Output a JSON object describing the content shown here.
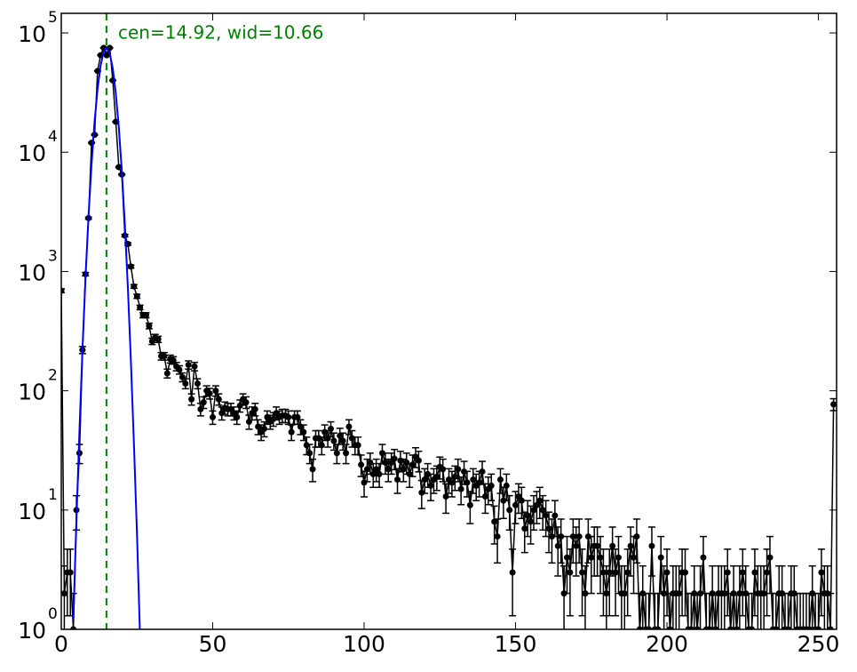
{
  "chart_data": {
    "type": "errorbar",
    "log_y": true,
    "annotation": "cen=14.92, wid=10.66",
    "annotation_color": "#008000",
    "vline": 14.92,
    "vline_color": "#008000",
    "color": "#000000",
    "xlim": [
      0,
      256
    ],
    "ylim": [
      1,
      146000
    ],
    "xticks": [
      0,
      50,
      100,
      150,
      200,
      250
    ],
    "yticks": [
      {
        "value": 1,
        "label": "10",
        "exponent": "0"
      },
      {
        "value": 10,
        "label": "10",
        "exponent": "1"
      },
      {
        "value": 100,
        "label": "10",
        "exponent": "2"
      },
      {
        "value": 1000,
        "label": "10",
        "exponent": "3"
      },
      {
        "value": 10000,
        "label": "10",
        "exponent": "4"
      },
      {
        "value": 100000,
        "label": "10",
        "exponent": "5"
      }
    ],
    "x": [
      0,
      1,
      2,
      3,
      4,
      5,
      6,
      7,
      8,
      9,
      10,
      11,
      12,
      13,
      14,
      15,
      16,
      17,
      18,
      19,
      20,
      21,
      22,
      23,
      24,
      25,
      26,
      27,
      28,
      29,
      30,
      31,
      32,
      33,
      34,
      35,
      36,
      37,
      38,
      39,
      40,
      41,
      42,
      43,
      44,
      45,
      46,
      47,
      48,
      49,
      50,
      51,
      52,
      53,
      54,
      55,
      56,
      57,
      58,
      59,
      60,
      61,
      62,
      63,
      64,
      65,
      66,
      67,
      68,
      69,
      70,
      71,
      72,
      73,
      74,
      75,
      76,
      77,
      78,
      79,
      80,
      81,
      82,
      83,
      84,
      85,
      86,
      87,
      88,
      89,
      90,
      91,
      92,
      93,
      94,
      95,
      96,
      97,
      98,
      99,
      100,
      101,
      102,
      103,
      104,
      105,
      106,
      107,
      108,
      109,
      110,
      111,
      112,
      113,
      114,
      115,
      116,
      117,
      118,
      119,
      120,
      121,
      122,
      123,
      124,
      125,
      126,
      127,
      128,
      129,
      130,
      131,
      132,
      133,
      134,
      135,
      136,
      137,
      138,
      139,
      140,
      141,
      142,
      143,
      144,
      145,
      146,
      147,
      148,
      149,
      150,
      151,
      152,
      153,
      154,
      155,
      156,
      157,
      158,
      159,
      160,
      161,
      162,
      163,
      164,
      165,
      166,
      167,
      168,
      169,
      170,
      171,
      172,
      173,
      174,
      175,
      176,
      177,
      178,
      179,
      180,
      181,
      182,
      183,
      184,
      185,
      186,
      187,
      188,
      189,
      190,
      191,
      192,
      193,
      194,
      195,
      196,
      197,
      198,
      199,
      200,
      201,
      202,
      203,
      204,
      205,
      206,
      207,
      208,
      209,
      210,
      211,
      212,
      213,
      214,
      215,
      216,
      217,
      218,
      219,
      220,
      221,
      222,
      223,
      224,
      225,
      226,
      227,
      228,
      229,
      230,
      231,
      232,
      233,
      234,
      235,
      236,
      237,
      238,
      239,
      240,
      241,
      242,
      243,
      244,
      245,
      246,
      247,
      248,
      249,
      250,
      251,
      252,
      253,
      254,
      255
    ],
    "values": [
      690,
      2,
      3,
      3,
      1,
      10,
      30,
      220,
      950,
      2800,
      12000,
      14000,
      48000,
      65000,
      75000,
      65000,
      75000,
      40000,
      18000,
      7500,
      6500,
      2000,
      1700,
      1100,
      750,
      620,
      500,
      430,
      430,
      350,
      260,
      280,
      270,
      195,
      195,
      140,
      185,
      180,
      160,
      150,
      130,
      115,
      165,
      85,
      160,
      115,
      70,
      80,
      100,
      95,
      60,
      100,
      85,
      65,
      72,
      70,
      70,
      65,
      60,
      75,
      85,
      80,
      55,
      65,
      70,
      50,
      45,
      48,
      60,
      55,
      58,
      65,
      60,
      62,
      62,
      60,
      45,
      60,
      60,
      50,
      45,
      35,
      30,
      22,
      40,
      40,
      35,
      45,
      40,
      48,
      38,
      30,
      42,
      38,
      30,
      50,
      40,
      35,
      35,
      24,
      17,
      22,
      25,
      20,
      22,
      20,
      30,
      25,
      22,
      25,
      27,
      18,
      26,
      22,
      25,
      20,
      24,
      28,
      26,
      14,
      18,
      20,
      16,
      18,
      19,
      23,
      22,
      13,
      18,
      17,
      19,
      22,
      15,
      21,
      17,
      11,
      18,
      16,
      17,
      21,
      13,
      15,
      16,
      8,
      6,
      18,
      12,
      16,
      10,
      3,
      11,
      13,
      12,
      7,
      9,
      8,
      10,
      11,
      12,
      10,
      9,
      7,
      6,
      9,
      5,
      6,
      2,
      4,
      3,
      6,
      5,
      6,
      3,
      2,
      6,
      4,
      5,
      5,
      4,
      3,
      2,
      3,
      5,
      3,
      4,
      2,
      2,
      3,
      5,
      4,
      6,
      1,
      2,
      1,
      1,
      5,
      1,
      1,
      4,
      2,
      3,
      1,
      2,
      2,
      2,
      3,
      3,
      1,
      1,
      2,
      1,
      2,
      4,
      1,
      1,
      2,
      1,
      2,
      2,
      2,
      3,
      1,
      2,
      1,
      2,
      3,
      2,
      1,
      1,
      3,
      2,
      2,
      2,
      3,
      4,
      1,
      1,
      2,
      2,
      1,
      1,
      2,
      2,
      1,
      1,
      1,
      1,
      1,
      2,
      1,
      1,
      3,
      2,
      2,
      1,
      77
    ],
    "errors": [
      26,
      1.4,
      1.7,
      1.7,
      1,
      3.2,
      5.5,
      15,
      31,
      53,
      110,
      118,
      219,
      255,
      274,
      255,
      274,
      200,
      134,
      87,
      81,
      45,
      41,
      33,
      27,
      25,
      22,
      21,
      21,
      19,
      16,
      17,
      16,
      14,
      14,
      12,
      14,
      13,
      13,
      12,
      11,
      11,
      13,
      9.2,
      13,
      11,
      8.4,
      8.9,
      10,
      9.7,
      7.7,
      10,
      9.2,
      8.1,
      8.5,
      8.4,
      8.4,
      8.1,
      7.7,
      8.7,
      9.2,
      8.9,
      7.4,
      8.1,
      8.4,
      7.1,
      6.7,
      6.9,
      7.7,
      7.4,
      7.6,
      8.1,
      7.7,
      7.9,
      7.9,
      7.7,
      6.7,
      7.7,
      7.7,
      7.1,
      6.7,
      5.9,
      5.5,
      4.7,
      6.3,
      6.3,
      5.9,
      6.7,
      6.3,
      6.9,
      6.2,
      5.5,
      6.5,
      6.2,
      5.5,
      7.1,
      6.3,
      5.9,
      5.9,
      4.9,
      4.1,
      4.7,
      5,
      4.5,
      4.7,
      4.5,
      5.5,
      5,
      4.7,
      5,
      5.2,
      4.2,
      5.1,
      4.7,
      5,
      4.5,
      4.9,
      5.3,
      5.1,
      3.7,
      4.2,
      4.5,
      4,
      4.2,
      4.4,
      4.8,
      4.7,
      3.6,
      4.2,
      4.1,
      4.4,
      4.7,
      3.9,
      4.6,
      4.1,
      3.3,
      4.2,
      4,
      4.1,
      4.6,
      3.6,
      3.9,
      4,
      2.8,
      2.4,
      4.2,
      3.5,
      4,
      3.2,
      1.7,
      3.3,
      3.6,
      3.5,
      2.6,
      3,
      2.8,
      3.2,
      3.3,
      3.5,
      3.2,
      3,
      2.6,
      2.4,
      3,
      2.2,
      2.4,
      1.4,
      2,
      1.7,
      2.4,
      2.2,
      2.4,
      1.7,
      1.4,
      2.4,
      2,
      2.2,
      2.2,
      2,
      1.7,
      1.4,
      1.7,
      2.2,
      1.7,
      2,
      1.4,
      1.4,
      1.7,
      2.2,
      2,
      2.4,
      1,
      1.4,
      1,
      1,
      2.2,
      1,
      1,
      2,
      1.4,
      1.7,
      1,
      1.4,
      1.4,
      1.4,
      1.7,
      1.7,
      1,
      1,
      1.4,
      1,
      1.4,
      2,
      1,
      1,
      1.4,
      1,
      1.4,
      1.4,
      1.4,
      1.7,
      1,
      1.4,
      1,
      1.4,
      1.7,
      1.4,
      1,
      1,
      1.7,
      1.4,
      1.4,
      1.4,
      1.7,
      2,
      1,
      1,
      1.4,
      1.4,
      1,
      1,
      1.4,
      1.4,
      1,
      1,
      1,
      1,
      1,
      1.4,
      1,
      1,
      1.7,
      1.4,
      1.4,
      1,
      8.8
    ],
    "fit": {
      "color": "#0000ff",
      "x": [
        4,
        5,
        6,
        7,
        8,
        9,
        10,
        11,
        12,
        13,
        14,
        15,
        16,
        17,
        18,
        19,
        20,
        21,
        22,
        23,
        24,
        25,
        26
      ],
      "values": [
        1.2,
        8.3,
        47,
        224,
        894,
        2930,
        7980,
        18100,
        34000,
        53300,
        69300,
        74960,
        67300,
        50200,
        31100,
        16100,
        6880,
        2450,
        727,
        177,
        36,
        6.2,
        0.86
      ]
    }
  }
}
